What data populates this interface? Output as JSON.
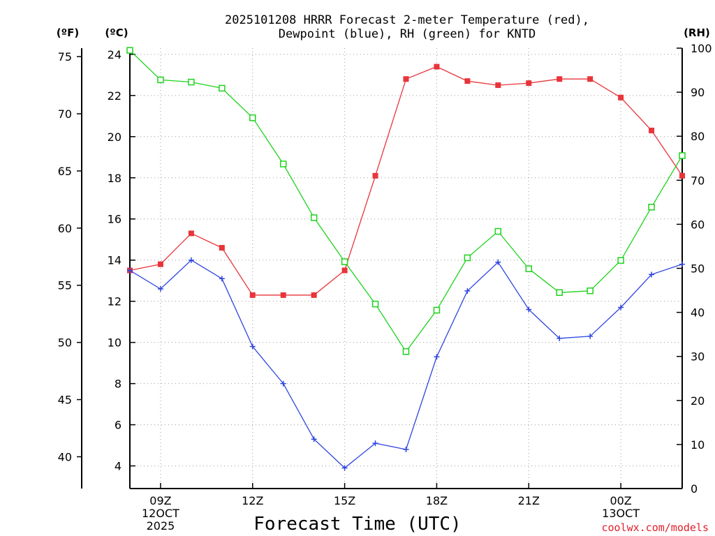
{
  "chart_data": {
    "type": "line",
    "title_lines": [
      "2025101208 HRRR Forecast 2-meter Temperature (red),",
      "Dewpoint (blue), RH (green) for KNTD"
    ],
    "xlabel": "Forecast Time (UTC)",
    "credit": "coolwx.com/models",
    "x_hours": [
      8,
      9,
      10,
      11,
      12,
      13,
      14,
      15,
      16,
      17,
      18,
      19,
      20,
      21,
      22,
      23,
      24,
      25,
      26
    ],
    "x_ticks": [
      {
        "hour": 9,
        "lines": [
          "09Z",
          "12OCT",
          "2025"
        ]
      },
      {
        "hour": 12,
        "lines": [
          "12Z"
        ]
      },
      {
        "hour": 15,
        "lines": [
          "15Z"
        ]
      },
      {
        "hour": 18,
        "lines": [
          "18Z"
        ]
      },
      {
        "hour": 21,
        "lines": [
          "21Z"
        ]
      },
      {
        "hour": 24,
        "lines": [
          "00Z",
          "13OCT"
        ]
      }
    ],
    "xlim": [
      8,
      26
    ],
    "y_celsius": {
      "unit": "(ºC)",
      "ylim": [
        2.9,
        24.3
      ],
      "ticks": [
        4,
        6,
        8,
        10,
        12,
        14,
        16,
        18,
        20,
        22,
        24
      ]
    },
    "y_fahrenheit": {
      "unit": "(ºF)",
      "ticks": [
        40,
        45,
        50,
        55,
        60,
        65,
        70,
        75
      ]
    },
    "y_rh": {
      "unit": "(RH)",
      "ylim": [
        0,
        100
      ],
      "ticks": [
        0,
        10,
        20,
        30,
        40,
        50,
        60,
        70,
        80,
        90,
        100
      ]
    },
    "series": [
      {
        "name": "Temperature",
        "axis": "celsius",
        "color": "#e8343a",
        "marker": "filled-square",
        "values": [
          13.5,
          13.8,
          15.3,
          14.6,
          12.3,
          12.3,
          12.3,
          13.5,
          18.1,
          22.8,
          23.4,
          22.7,
          22.5,
          22.6,
          22.8,
          22.8,
          21.9,
          20.3,
          18.1
        ]
      },
      {
        "name": "Dewpoint",
        "axis": "celsius",
        "color": "#2e45e0",
        "marker": "plus",
        "values": [
          13.5,
          12.6,
          14.0,
          13.1,
          9.8,
          8.0,
          5.3,
          3.9,
          5.1,
          4.8,
          9.3,
          12.5,
          13.9,
          11.6,
          10.2,
          10.3,
          11.7,
          13.3,
          13.8
        ]
      },
      {
        "name": "RH",
        "axis": "rh",
        "color": "#1ed21e",
        "marker": "open-square",
        "values": [
          99.5,
          92.8,
          92.3,
          90.9,
          84.2,
          73.7,
          61.5,
          51.5,
          41.9,
          31.1,
          40.5,
          52.4,
          58.4,
          49.9,
          44.5,
          44.9,
          51.8,
          63.9,
          75.6
        ]
      }
    ]
  }
}
